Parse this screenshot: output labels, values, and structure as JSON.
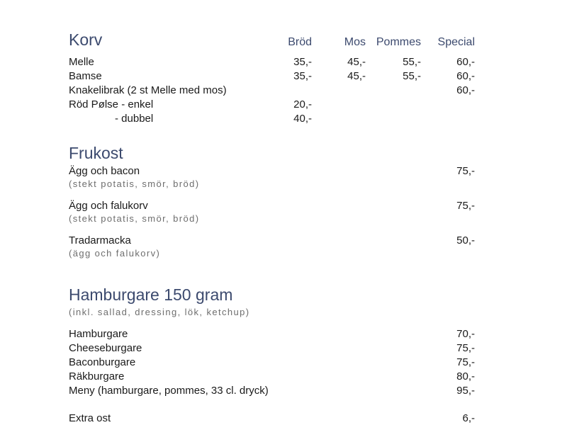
{
  "colors": {
    "background": "#ffffff",
    "heading": "#3c4a6e",
    "text": "#1a1a1a",
    "muted": "#6e6e6e"
  },
  "sections": {
    "korv": {
      "title": "Korv",
      "columns": [
        "Bröd",
        "Mos",
        "Pommes",
        "Special"
      ],
      "rows": [
        {
          "name": "Melle",
          "prices": [
            "35,-",
            "45,-",
            "55,-",
            "60,-"
          ]
        },
        {
          "name": "Bamse",
          "prices": [
            "35,-",
            "45,-",
            "55,-",
            "60,-"
          ]
        },
        {
          "name": "Knakelibrak (2 st Melle med mos)",
          "prices": [
            "",
            "",
            "",
            "60,-"
          ]
        },
        {
          "name": "Röd Pølse - enkel",
          "prices": [
            "20,-",
            "",
            "",
            ""
          ]
        },
        {
          "name": "- dubbel",
          "prices": [
            "40,-",
            "",
            "",
            ""
          ]
        }
      ]
    },
    "frukost": {
      "title": "Frukost",
      "items": [
        {
          "name": "Ägg och bacon",
          "desc": "(stekt potatis, smör, bröd)",
          "price": "75,-"
        },
        {
          "name": "Ägg och falukorv",
          "desc": "(stekt potatis, smör, bröd)",
          "price": "75,-"
        },
        {
          "name": "Tradarmacka",
          "desc": "(ägg och falukorv)",
          "price": "50,-"
        }
      ]
    },
    "hamburgare": {
      "title": "Hamburgare 150 gram",
      "subtitle": "(inkl. sallad, dressing, lök, ketchup)",
      "items": [
        {
          "name": "Hamburgare",
          "price": "70,-"
        },
        {
          "name": "Cheeseburgare",
          "price": "75,-"
        },
        {
          "name": "Baconburgare",
          "price": "75,-"
        },
        {
          "name": "Räkburgare",
          "price": "80,-"
        },
        {
          "name": "Meny (hamburgare, pommes, 33 cl. dryck)",
          "price": "95,-"
        }
      ],
      "extra": {
        "name": "Extra ost",
        "price": "6,-"
      }
    }
  }
}
